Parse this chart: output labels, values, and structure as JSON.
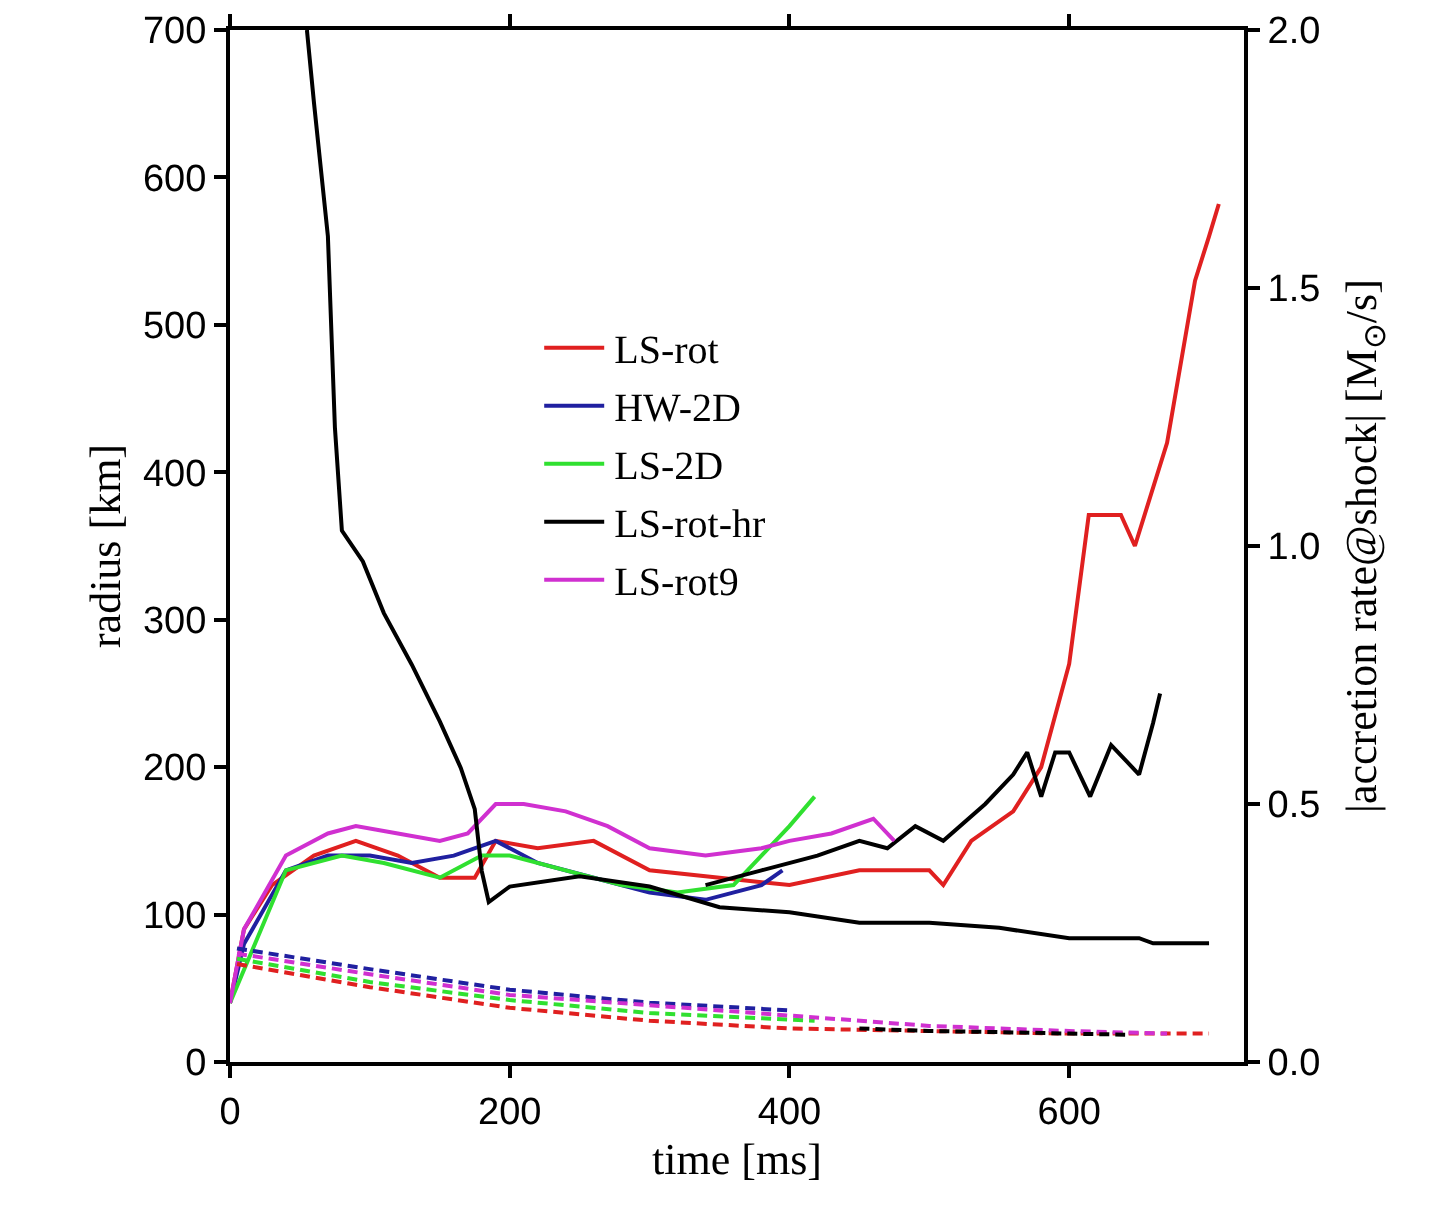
{
  "chart_data": {
    "type": "line",
    "xlabel": "time [ms]",
    "ylabel": "radius [km]",
    "y2label": "|accretion rate@shock| [M$_{⊙}$/s]",
    "xlim": [
      0,
      725
    ],
    "xticks": [
      0,
      200,
      400,
      600
    ],
    "ylim": [
      0,
      700
    ],
    "yticks": [
      0,
      100,
      200,
      300,
      400,
      500,
      600,
      700
    ],
    "y2lim": [
      0,
      2
    ],
    "y2ticks": [
      {
        "value": 0,
        "label": "0.0"
      },
      {
        "value": 0.5,
        "label": "0.5"
      },
      {
        "value": 1,
        "label": "1.0"
      },
      {
        "value": 1.5,
        "label": "1.5"
      },
      {
        "value": 2,
        "label": "2.0"
      }
    ],
    "grid": false,
    "legend": "top",
    "marker": "none",
    "line_style": "solid",
    "series": [
      {
        "name": "LS-rot",
        "color": "#e02020",
        "x": [
          0,
          10,
          30,
          60,
          90,
          120,
          150,
          175,
          190,
          220,
          260,
          300,
          350,
          400,
          450,
          500,
          510,
          530,
          560,
          580,
          600,
          614,
          637,
          647,
          670,
          690,
          700,
          707
        ],
        "values": [
          40,
          90,
          120,
          140,
          150,
          140,
          125,
          125,
          150,
          145,
          150,
          130,
          125,
          120,
          130,
          130,
          120,
          150,
          170,
          200,
          270,
          371,
          371,
          350,
          420,
          530,
          560,
          582
        ]
      },
      {
        "name": "HW-2D",
        "color": "#2020a0",
        "x": [
          0,
          10,
          40,
          70,
          100,
          130,
          160,
          190,
          220,
          260,
          300,
          340,
          380,
          395
        ],
        "values": [
          40,
          80,
          130,
          140,
          140,
          135,
          140,
          150,
          135,
          125,
          115,
          110,
          120,
          130
        ]
      },
      {
        "name": "LS-2D",
        "color": "#30e030",
        "x": [
          0,
          40,
          80,
          110,
          150,
          180,
          200,
          240,
          280,
          320,
          360,
          380,
          400,
          418
        ],
        "values": [
          40,
          130,
          140,
          135,
          125,
          140,
          140,
          130,
          120,
          115,
          120,
          140,
          160,
          180
        ]
      },
      {
        "name": "LS-rot-hr",
        "color": "#000000",
        "x": [
          340,
          380,
          420,
          450,
          470,
          490,
          510,
          540,
          560,
          570,
          580,
          590,
          600,
          615,
          630,
          650,
          660,
          665
        ],
        "values": [
          120,
          130,
          140,
          150,
          145,
          160,
          150,
          175,
          195,
          210,
          180,
          210,
          210,
          180,
          215,
          195,
          230,
          250
        ]
      },
      {
        "name": "LS-rot9",
        "color": "#d030d0",
        "x": [
          0,
          10,
          40,
          70,
          90,
          120,
          150,
          170,
          190,
          210,
          240,
          270,
          300,
          340,
          380,
          400,
          430,
          460,
          475
        ],
        "values": [
          40,
          90,
          140,
          155,
          160,
          155,
          150,
          155,
          175,
          175,
          170,
          160,
          145,
          140,
          145,
          150,
          155,
          165,
          150
        ]
      },
      {
        "color": "#000000",
        "axis": "y2",
        "x": [
          55,
          60,
          70,
          75,
          80,
          95,
          110,
          130,
          150,
          165,
          175,
          180,
          185,
          200,
          250,
          300,
          350,
          400,
          450,
          500,
          550,
          600,
          650,
          660,
          700
        ],
        "values": [
          2.0,
          1.86,
          1.6,
          1.23,
          1.03,
          0.97,
          0.87,
          0.77,
          0.66,
          0.57,
          0.49,
          0.37,
          0.31,
          0.34,
          0.36,
          0.34,
          0.3,
          0.29,
          0.27,
          0.27,
          0.26,
          0.24,
          0.24,
          0.23,
          0.23
        ]
      },
      {
        "color": "#e02020",
        "axis": "y2",
        "line_style": "dashed",
        "x": [
          5,
          100,
          200,
          300,
          400,
          500,
          600,
          700
        ],
        "values": [
          0.19,
          0.145,
          0.105,
          0.08,
          0.065,
          0.06,
          0.055,
          0.055
        ]
      },
      {
        "color": "#2020a0",
        "axis": "y2",
        "line_style": "dashed",
        "x": [
          5,
          100,
          200,
          300,
          400
        ],
        "values": [
          0.22,
          0.18,
          0.14,
          0.115,
          0.1
        ]
      },
      {
        "color": "#30e030",
        "axis": "y2",
        "line_style": "dashed",
        "x": [
          5,
          100,
          200,
          300,
          418
        ],
        "values": [
          0.2,
          0.155,
          0.12,
          0.095,
          0.08
        ]
      },
      {
        "color": "#d030d0",
        "axis": "y2",
        "line_style": "dashed",
        "x": [
          5,
          100,
          200,
          300,
          400,
          500,
          600,
          670
        ],
        "values": [
          0.21,
          0.17,
          0.13,
          0.11,
          0.09,
          0.07,
          0.06,
          0.055
        ]
      },
      {
        "color": "#000000",
        "axis": "y2",
        "line_style": "dashed",
        "x": [
          450,
          500,
          550,
          600,
          640
        ],
        "values": [
          0.065,
          0.06,
          0.058,
          0.055,
          0.053
        ]
      }
    ]
  }
}
